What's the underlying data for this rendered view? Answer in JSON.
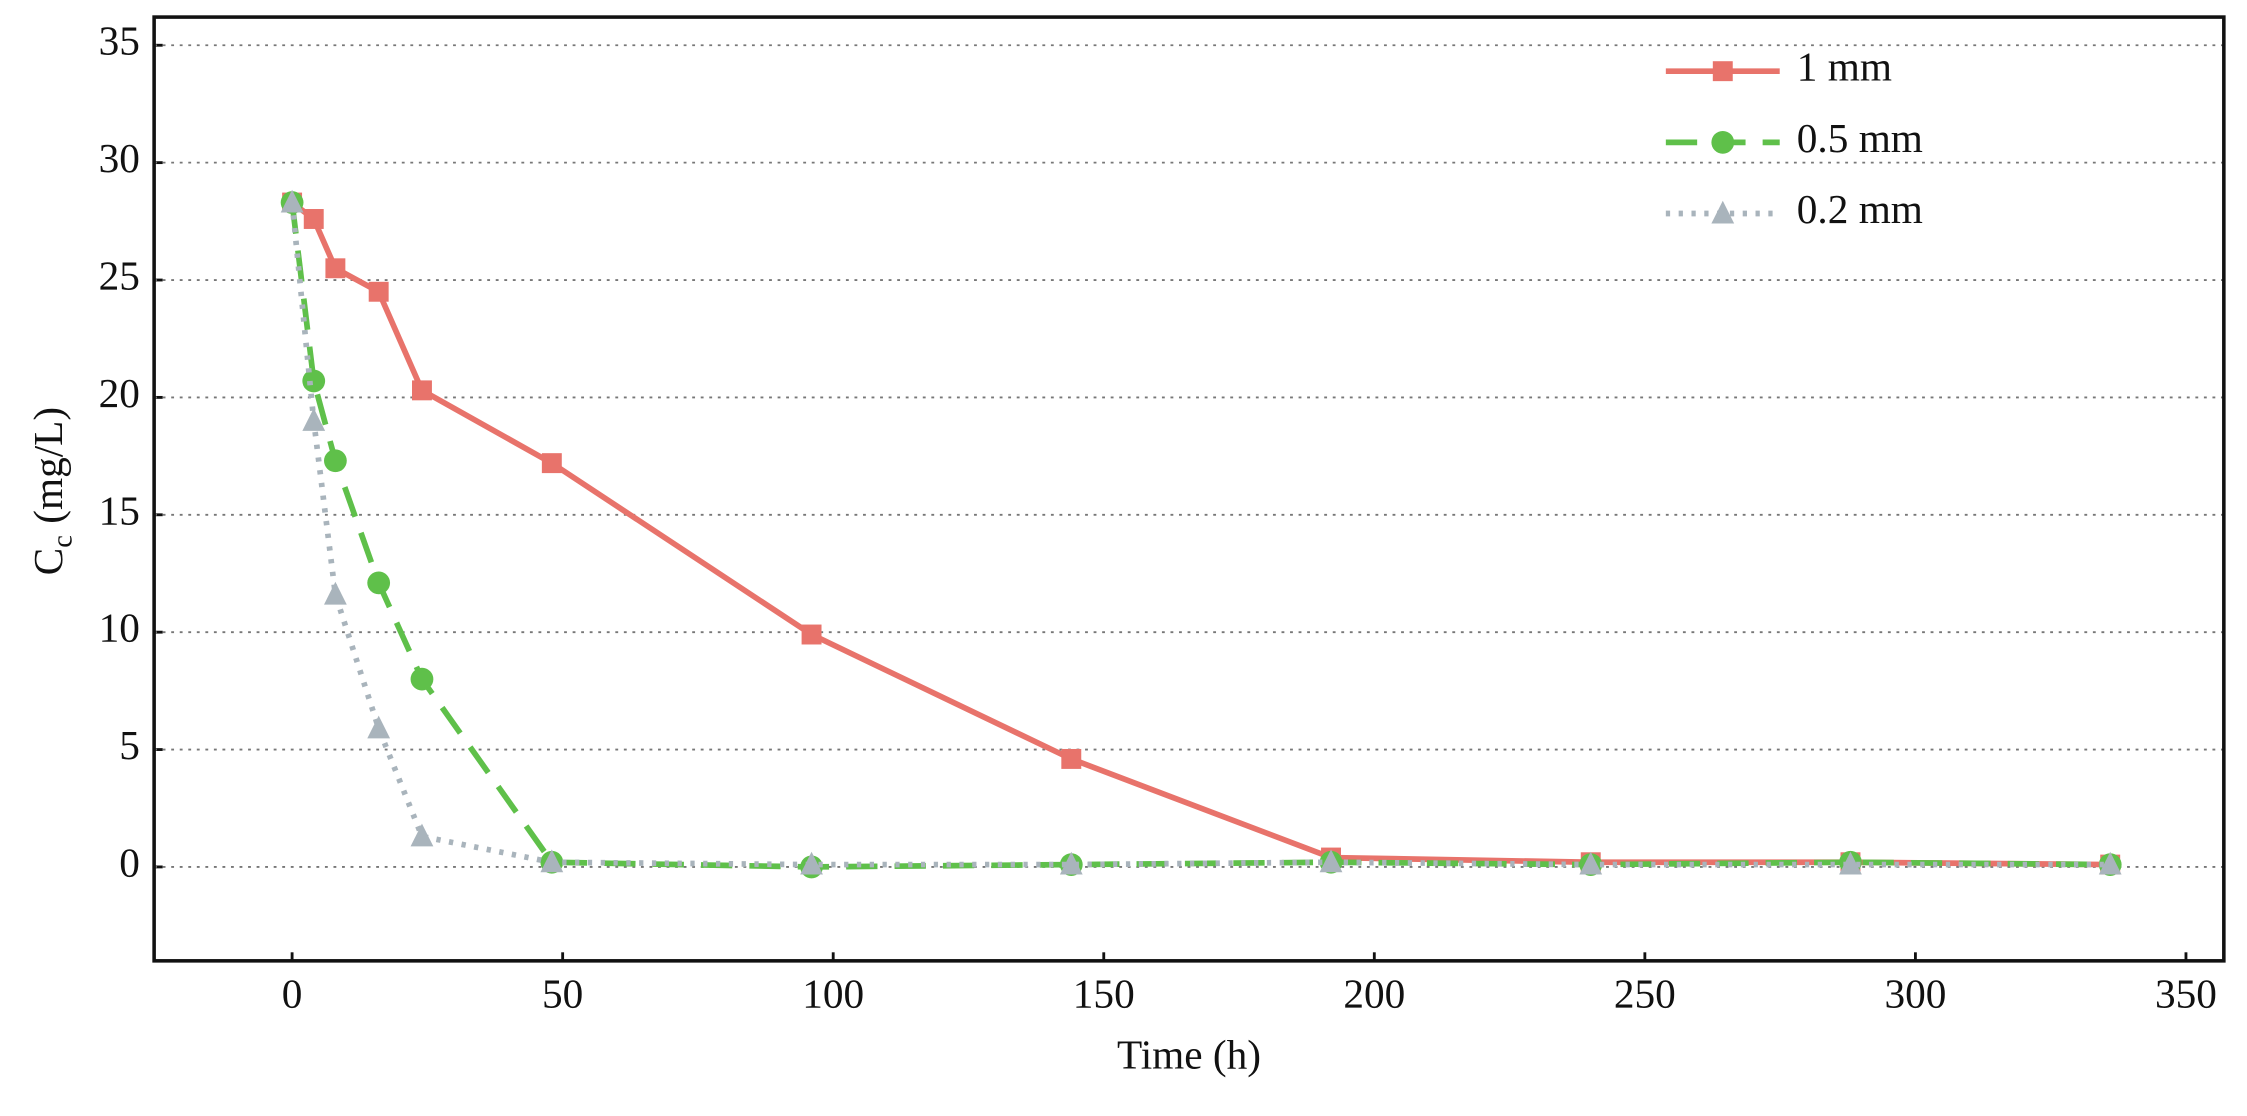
{
  "chart_data": {
    "type": "line",
    "x_label": "Time (h)",
    "y_label": "C",
    "y_label_subscript": "c",
    "y_label_unit": "(mg/L)",
    "x": [
      0,
      4,
      8,
      16,
      24,
      48,
      96,
      144,
      192,
      240,
      288,
      336
    ],
    "series": [
      {
        "name": "1 mm",
        "color": "#e8736b",
        "dash": "solid",
        "marker": "square",
        "values": [
          28.3,
          27.6,
          25.5,
          24.5,
          20.3,
          17.2,
          9.9,
          4.6,
          0.4,
          0.2,
          0.2,
          0.1
        ]
      },
      {
        "name": "0.5 mm",
        "color": "#5fc04a",
        "dash": "dashed",
        "marker": "circle",
        "values": [
          28.3,
          20.7,
          17.3,
          12.1,
          8.0,
          0.2,
          0.0,
          0.1,
          0.2,
          0.1,
          0.2,
          0.1
        ]
      },
      {
        "name": "0.2 mm",
        "color": "#a9b4bc",
        "dash": "dotted",
        "marker": "triangle",
        "values": [
          28.3,
          19.0,
          11.6,
          5.9,
          1.3,
          0.2,
          0.1,
          0.1,
          0.2,
          0.1,
          0.1,
          0.1
        ]
      }
    ],
    "xlim": [
      -25.5,
      357
    ],
    "ylim": [
      -4,
      36.2
    ],
    "xticks": [
      0,
      50,
      100,
      150,
      200,
      250,
      300,
      350
    ],
    "yticks": [
      0,
      5,
      10,
      15,
      20,
      25,
      30,
      35
    ],
    "grid": true,
    "legend": "upper right"
  }
}
